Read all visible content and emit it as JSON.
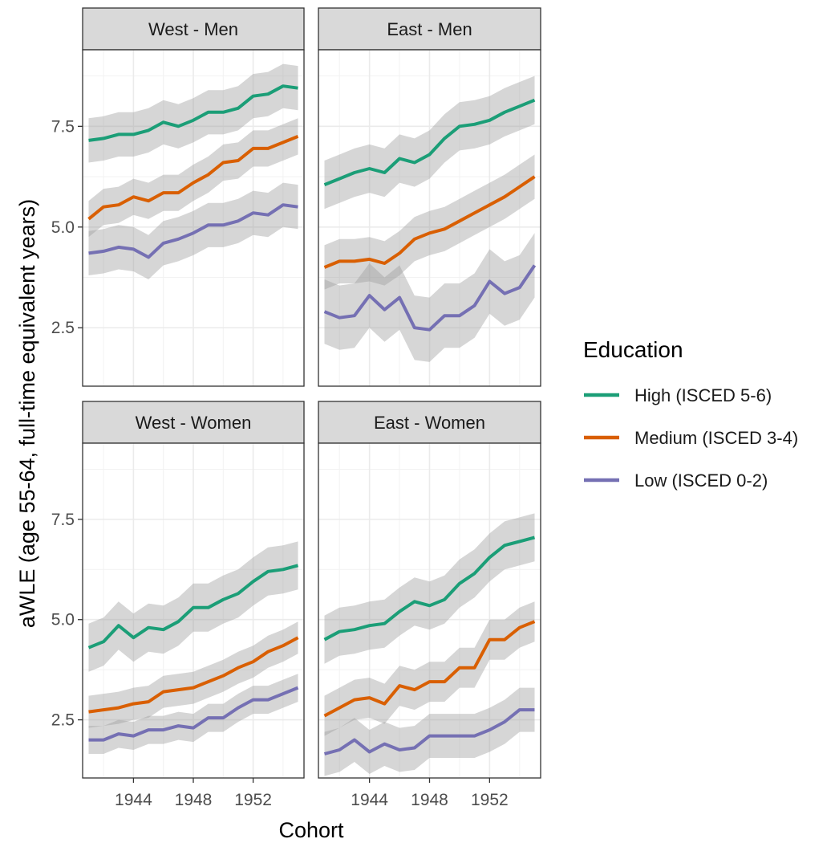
{
  "chart_data": {
    "type": "line",
    "xlabel": "Cohort",
    "ylabel": "aWLE (age 55-64, full-time equivalent years)",
    "x": [
      1941,
      1942,
      1943,
      1944,
      1945,
      1946,
      1947,
      1948,
      1949,
      1950,
      1951,
      1952,
      1953,
      1954,
      1955
    ],
    "xlim": [
      1940.6,
      1955.4
    ],
    "ylim": [
      1.05,
      9.4
    ],
    "x_ticks": [
      1944,
      1948,
      1952
    ],
    "x_tick_labels": [
      "1944",
      "1948",
      "1952"
    ],
    "y_ticks": [
      2.5,
      5.0,
      7.5
    ],
    "y_tick_labels": [
      "2.5",
      "5.0",
      "7.5"
    ],
    "grid": true,
    "ribbons": true,
    "legend": {
      "title": "Education",
      "position": "right",
      "entries": [
        {
          "label": "High (ISCED 5-6)",
          "color": "#1b9e77"
        },
        {
          "label": "Medium (ISCED 3-4)",
          "color": "#d95f02"
        },
        {
          "label": "Low (ISCED 0-2)",
          "color": "#7570b3"
        }
      ]
    },
    "panels": [
      {
        "title": "West - Men",
        "series": [
          {
            "key": "high",
            "color": "#1b9e77",
            "values": [
              7.15,
              7.2,
              7.3,
              7.3,
              7.4,
              7.6,
              7.5,
              7.65,
              7.85,
              7.85,
              7.95,
              8.25,
              8.3,
              8.5,
              8.45
            ],
            "lower": [
              6.6,
              6.65,
              6.75,
              6.75,
              6.85,
              7.05,
              6.95,
              7.1,
              7.3,
              7.3,
              7.4,
              7.7,
              7.75,
              7.95,
              7.9
            ],
            "upper": [
              7.7,
              7.75,
              7.85,
              7.85,
              7.95,
              8.15,
              8.05,
              8.2,
              8.4,
              8.4,
              8.5,
              8.8,
              8.85,
              9.05,
              9.0
            ]
          },
          {
            "key": "medium",
            "color": "#d95f02",
            "values": [
              5.2,
              5.5,
              5.55,
              5.75,
              5.65,
              5.85,
              5.85,
              6.1,
              6.3,
              6.6,
              6.65,
              6.95,
              6.95,
              7.1,
              7.25
            ],
            "lower": [
              4.75,
              5.05,
              5.1,
              5.3,
              5.2,
              5.4,
              5.4,
              5.65,
              5.85,
              6.15,
              6.2,
              6.5,
              6.5,
              6.65,
              6.8
            ],
            "upper": [
              5.65,
              5.95,
              6.0,
              6.2,
              6.1,
              6.3,
              6.3,
              6.55,
              6.75,
              7.05,
              7.1,
              7.4,
              7.4,
              7.55,
              7.7
            ]
          },
          {
            "key": "low",
            "color": "#7570b3",
            "values": [
              4.35,
              4.4,
              4.5,
              4.45,
              4.25,
              4.6,
              4.7,
              4.85,
              5.05,
              5.05,
              5.15,
              5.35,
              5.3,
              5.55,
              5.5
            ],
            "lower": [
              3.8,
              3.85,
              3.95,
              3.9,
              3.7,
              4.05,
              4.15,
              4.3,
              4.5,
              4.5,
              4.6,
              4.8,
              4.75,
              5.0,
              4.95
            ],
            "upper": [
              4.9,
              4.95,
              5.05,
              5.0,
              4.8,
              5.15,
              5.25,
              5.4,
              5.6,
              5.6,
              5.7,
              5.9,
              5.85,
              6.1,
              6.05
            ]
          }
        ]
      },
      {
        "title": "East - Men",
        "series": [
          {
            "key": "high",
            "color": "#1b9e77",
            "values": [
              6.05,
              6.2,
              6.35,
              6.45,
              6.35,
              6.7,
              6.6,
              6.8,
              7.2,
              7.5,
              7.55,
              7.65,
              7.85,
              8.0,
              8.15
            ],
            "lower": [
              5.45,
              5.6,
              5.75,
              5.85,
              5.75,
              6.1,
              6.0,
              6.2,
              6.6,
              6.9,
              6.95,
              7.05,
              7.25,
              7.4,
              7.55
            ],
            "upper": [
              6.65,
              6.8,
              6.95,
              7.05,
              6.95,
              7.3,
              7.2,
              7.4,
              7.8,
              8.1,
              8.15,
              8.25,
              8.45,
              8.6,
              8.75
            ]
          },
          {
            "key": "medium",
            "color": "#d95f02",
            "values": [
              4.0,
              4.15,
              4.15,
              4.2,
              4.1,
              4.35,
              4.7,
              4.85,
              4.95,
              5.15,
              5.35,
              5.55,
              5.75,
              6.0,
              6.25
            ],
            "lower": [
              3.45,
              3.6,
              3.6,
              3.65,
              3.55,
              3.8,
              4.15,
              4.3,
              4.4,
              4.6,
              4.8,
              5.0,
              5.2,
              5.45,
              5.7
            ],
            "upper": [
              4.55,
              4.7,
              4.7,
              4.75,
              4.65,
              4.9,
              5.25,
              5.4,
              5.5,
              5.7,
              5.9,
              6.1,
              6.3,
              6.55,
              6.8
            ]
          },
          {
            "key": "low",
            "color": "#7570b3",
            "values": [
              2.9,
              2.75,
              2.8,
              3.3,
              2.95,
              3.25,
              2.5,
              2.45,
              2.8,
              2.8,
              3.05,
              3.65,
              3.35,
              3.5,
              4.05
            ],
            "lower": [
              2.1,
              1.95,
              2.0,
              2.5,
              2.15,
              2.45,
              1.7,
              1.65,
              2.0,
              2.0,
              2.25,
              2.85,
              2.55,
              2.7,
              3.25
            ],
            "upper": [
              3.7,
              3.55,
              3.6,
              4.1,
              3.75,
              4.05,
              3.3,
              3.25,
              3.6,
              3.6,
              3.85,
              4.45,
              4.15,
              4.3,
              4.85
            ]
          }
        ]
      },
      {
        "title": "West - Women",
        "series": [
          {
            "key": "high",
            "color": "#1b9e77",
            "values": [
              4.3,
              4.45,
              4.85,
              4.55,
              4.8,
              4.75,
              4.95,
              5.3,
              5.3,
              5.5,
              5.65,
              5.95,
              6.2,
              6.25,
              6.35
            ],
            "lower": [
              3.7,
              3.85,
              4.25,
              3.95,
              4.2,
              4.15,
              4.35,
              4.7,
              4.7,
              4.9,
              5.05,
              5.35,
              5.6,
              5.65,
              5.75
            ],
            "upper": [
              4.9,
              5.05,
              5.45,
              5.15,
              5.4,
              5.35,
              5.55,
              5.9,
              5.9,
              6.1,
              6.25,
              6.55,
              6.8,
              6.85,
              6.95
            ]
          },
          {
            "key": "medium",
            "color": "#d95f02",
            "values": [
              2.7,
              2.75,
              2.8,
              2.9,
              2.95,
              3.2,
              3.25,
              3.3,
              3.45,
              3.6,
              3.8,
              3.95,
              4.2,
              4.35,
              4.55
            ],
            "lower": [
              2.3,
              2.35,
              2.4,
              2.5,
              2.55,
              2.8,
              2.85,
              2.9,
              3.05,
              3.2,
              3.4,
              3.55,
              3.8,
              3.95,
              4.15
            ],
            "upper": [
              3.1,
              3.15,
              3.2,
              3.3,
              3.35,
              3.6,
              3.65,
              3.7,
              3.85,
              4.0,
              4.2,
              4.35,
              4.6,
              4.75,
              4.95
            ]
          },
          {
            "key": "low",
            "color": "#7570b3",
            "values": [
              2.0,
              2.0,
              2.15,
              2.1,
              2.25,
              2.25,
              2.35,
              2.3,
              2.55,
              2.55,
              2.8,
              3.0,
              3.0,
              3.15,
              3.3
            ],
            "lower": [
              1.65,
              1.65,
              1.8,
              1.75,
              1.9,
              1.9,
              2.0,
              1.95,
              2.2,
              2.2,
              2.45,
              2.65,
              2.65,
              2.8,
              2.95
            ],
            "upper": [
              2.35,
              2.35,
              2.5,
              2.45,
              2.6,
              2.6,
              2.7,
              2.65,
              2.9,
              2.9,
              3.15,
              3.35,
              3.35,
              3.5,
              3.65
            ]
          }
        ]
      },
      {
        "title": "East - Women",
        "series": [
          {
            "key": "high",
            "color": "#1b9e77",
            "values": [
              4.5,
              4.7,
              4.75,
              4.85,
              4.9,
              5.2,
              5.45,
              5.35,
              5.5,
              5.9,
              6.15,
              6.55,
              6.85,
              6.95,
              7.05
            ],
            "lower": [
              3.9,
              4.1,
              4.15,
              4.25,
              4.3,
              4.6,
              4.85,
              4.75,
              4.9,
              5.3,
              5.55,
              5.95,
              6.25,
              6.35,
              6.45
            ],
            "upper": [
              5.1,
              5.3,
              5.35,
              5.45,
              5.5,
              5.8,
              6.05,
              5.95,
              6.1,
              6.5,
              6.75,
              7.15,
              7.45,
              7.55,
              7.65
            ]
          },
          {
            "key": "medium",
            "color": "#d95f02",
            "values": [
              2.6,
              2.8,
              3.0,
              3.05,
              2.9,
              3.35,
              3.25,
              3.45,
              3.45,
              3.8,
              3.8,
              4.5,
              4.5,
              4.8,
              4.95
            ],
            "lower": [
              2.1,
              2.3,
              2.5,
              2.55,
              2.4,
              2.85,
              2.75,
              2.95,
              2.95,
              3.3,
              3.3,
              4.0,
              4.0,
              4.3,
              4.45
            ],
            "upper": [
              3.1,
              3.3,
              3.5,
              3.55,
              3.4,
              3.85,
              3.75,
              3.95,
              3.95,
              4.3,
              4.3,
              5.0,
              5.0,
              5.3,
              5.45
            ]
          },
          {
            "key": "low",
            "color": "#7570b3",
            "values": [
              1.65,
              1.75,
              2.0,
              1.7,
              1.9,
              1.75,
              1.8,
              2.1,
              2.1,
              2.1,
              2.1,
              2.25,
              2.45,
              2.75,
              2.75
            ],
            "lower": [
              1.1,
              1.2,
              1.45,
              1.15,
              1.35,
              1.2,
              1.25,
              1.55,
              1.55,
              1.55,
              1.55,
              1.7,
              1.9,
              2.2,
              2.2
            ],
            "upper": [
              2.2,
              2.3,
              2.55,
              2.25,
              2.45,
              2.3,
              2.35,
              2.65,
              2.65,
              2.65,
              2.65,
              2.8,
              3.0,
              3.3,
              3.3
            ]
          }
        ]
      }
    ]
  }
}
